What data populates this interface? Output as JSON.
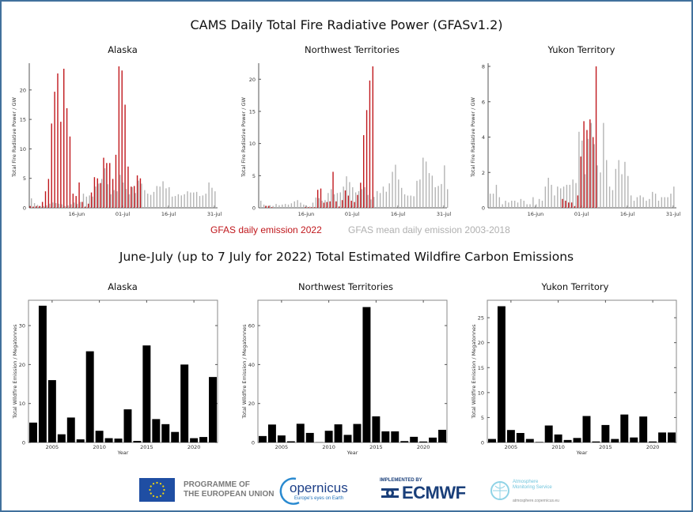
{
  "page": {
    "title": "CAMS Daily Total Fire Radiative Power (GFASv1.2)",
    "section_title": "June-July (up to 7 July for 2022) Total Estimated Wildfire Carbon Emissions",
    "legend": {
      "current_label": "GFAS daily emission 2022",
      "mean_label": "GFAS mean daily emission 2003-2018",
      "current_color": "#c0171c",
      "mean_color": "#b4b4b4"
    },
    "footer": {
      "eu_text_line1": "PROGRAMME OF",
      "eu_text_line2": "THE EUROPEAN UNION",
      "copernicus_word": "opernicus",
      "copernicus_sub": "Europe's eyes on Earth",
      "ecmwf_implemented": "IMPLEMENTED BY",
      "ecmwf_word": "ECMWF",
      "cams_line1": "Atmosphere",
      "cams_line2": "Monitoring Service",
      "cams_url": "atmosphere.copernicus.eu"
    }
  },
  "chart_data": [
    {
      "type": "bar",
      "title": "Alaska",
      "ylabel": "Total Fire Radiative Power / GW",
      "xlabel": "",
      "x_start": "01-jun",
      "days": 61,
      "xticks": [
        {
          "day": 16,
          "label": "16-jun"
        },
        {
          "day": 31,
          "label": "01-jul"
        },
        {
          "day": 46,
          "label": "16-jul"
        },
        {
          "day": 61,
          "label": "31-jul"
        }
      ],
      "yticks": [
        0,
        5,
        10,
        15,
        20
      ],
      "ylim": [
        0,
        24
      ],
      "series": [
        {
          "name": "GFAS mean daily emission 2003-2018",
          "color": "#b4b4b4",
          "values": [
            1.6,
            0.8,
            0.5,
            0.3,
            0.3,
            0.4,
            0.7,
            0.9,
            0.8,
            0.7,
            0.6,
            0.3,
            0.4,
            0.6,
            0.9,
            0.7,
            1.0,
            2.4,
            1.9,
            2.1,
            1.9,
            3.6,
            4.1,
            4.9,
            6.7,
            4.0,
            2.3,
            3.0,
            2.8,
            5.6,
            4.3,
            3.2,
            2.3,
            3.5,
            2.5,
            4.6,
            4.1,
            3.0,
            2.4,
            2.2,
            2.7,
            3.7,
            3.6,
            4.5,
            3.3,
            3.5,
            1.9,
            2.0,
            2.3,
            2.1,
            2.3,
            2.8,
            2.6,
            2.6,
            2.7,
            2.0,
            2.1,
            2.4,
            4.3,
            3.4,
            2.8
          ]
        },
        {
          "name": "GFAS daily emission 2022",
          "color": "#c0171c",
          "values": [
            0.3,
            0.2,
            0.3,
            0.3,
            1.0,
            2.8,
            4.9,
            14.3,
            19.7,
            22.8,
            14.6,
            23.6,
            16.9,
            12.1,
            2.4,
            2.0,
            4.3,
            1.0,
            0.2,
            0.7,
            2.6,
            5.2,
            5.0,
            4.2,
            8.5,
            7.6,
            7.6,
            4.9,
            9.0,
            24.0,
            23.3,
            17.5,
            7.0,
            3.6,
            3.7,
            5.5,
            5.0
          ]
        }
      ]
    },
    {
      "type": "bar",
      "title": "Northwest Territories",
      "ylabel": "Total Fire Radiative Power / GW",
      "xlabel": "",
      "x_start": "01-jun",
      "days": 61,
      "xticks": [
        {
          "day": 16,
          "label": "16-jun"
        },
        {
          "day": 31,
          "label": "01-jul"
        },
        {
          "day": 46,
          "label": "16-jul"
        },
        {
          "day": 61,
          "label": "31-jul"
        }
      ],
      "yticks": [
        0,
        5,
        10,
        15,
        20
      ],
      "ylim": [
        0,
        22
      ],
      "series": [
        {
          "name": "GFAS mean daily emission 2003-2018",
          "color": "#b4b4b4",
          "values": [
            1.1,
            0.5,
            0.3,
            0.4,
            0.3,
            0.6,
            0.4,
            0.5,
            0.6,
            0.5,
            0.7,
            1.0,
            1.2,
            0.8,
            0.5,
            0.2,
            0.2,
            0.8,
            1.6,
            1.5,
            1.1,
            1.2,
            2.3,
            2.9,
            2.1,
            2.3,
            2.4,
            3.3,
            4.9,
            4.0,
            3.2,
            2.4,
            2.6,
            2.9,
            3.2,
            2.0,
            1.3,
            1.7,
            2.6,
            2.3,
            3.3,
            2.5,
            3.8,
            5.6,
            6.7,
            4.4,
            3.1,
            2.1,
            1.9,
            1.9,
            1.8,
            4.2,
            4.4,
            7.8,
            7.2,
            5.4,
            5.0,
            3.2,
            3.4,
            3.7,
            6.6,
            2.9
          ]
        },
        {
          "name": "GFAS daily emission 2022",
          "color": "#c0171c",
          "values": [
            0.0,
            0.0,
            0.3,
            0.3,
            0.1,
            0.0,
            0.0,
            0.0,
            0.0,
            0.0,
            0.0,
            0.0,
            0.0,
            0.0,
            0.0,
            0.1,
            0.1,
            0.1,
            0.1,
            2.8,
            3.0,
            0.8,
            0.9,
            1.0,
            5.6,
            1.0,
            0.2,
            1.2,
            2.7,
            1.9,
            1.1,
            0.9,
            2.0,
            3.9,
            11.3,
            15.2,
            19.8,
            22.0
          ]
        }
      ]
    },
    {
      "type": "bar",
      "title": "Yukon Territory",
      "ylabel": "Total Fire Radiative Power / GW",
      "xlabel": "",
      "x_start": "01-jun",
      "days": 61,
      "xticks": [
        {
          "day": 16,
          "label": "16-jun"
        },
        {
          "day": 31,
          "label": "01-jul"
        },
        {
          "day": 46,
          "label": "16-jul"
        },
        {
          "day": 61,
          "label": "31-jul"
        }
      ],
      "yticks": [
        0,
        2,
        4,
        6,
        8
      ],
      "ylim": [
        0,
        8
      ],
      "series": [
        {
          "name": "GFAS mean daily emission 2003-2018",
          "color": "#b4b4b4",
          "values": [
            0.8,
            0.8,
            1.3,
            0.6,
            0.2,
            0.4,
            0.3,
            0.4,
            0.4,
            0.3,
            0.5,
            0.4,
            0.2,
            0.2,
            0.6,
            0.2,
            0.5,
            0.4,
            1.2,
            1.7,
            1.3,
            0.7,
            1.2,
            1.1,
            1.2,
            1.3,
            1.3,
            1.6,
            1.4,
            4.3,
            3.8,
            1.9,
            3.9,
            4.8,
            3.6,
            2.4,
            2.0,
            4.8,
            2.7,
            1.2,
            1.0,
            2.2,
            2.7,
            1.9,
            2.6,
            1.8,
            0.7,
            0.4,
            0.6,
            0.7,
            0.6,
            0.4,
            0.5,
            0.9,
            0.8,
            0.4,
            0.6,
            0.6,
            0.6,
            0.8,
            1.2
          ]
        },
        {
          "name": "GFAS daily emission 2022",
          "color": "#c0171c",
          "values": [
            0.0,
            0.0,
            0.0,
            0.0,
            0.0,
            0.0,
            0.0,
            0.0,
            0.0,
            0.0,
            0.0,
            0.0,
            0.0,
            0.0,
            0.0,
            0.0,
            0.0,
            0.0,
            0.0,
            0.0,
            0.0,
            0.0,
            0.0,
            0.0,
            0.5,
            0.4,
            0.3,
            0.3,
            0.1,
            0.7,
            2.9,
            4.9,
            4.4,
            5.0,
            4.0,
            8.0
          ]
        }
      ]
    },
    {
      "type": "bar",
      "title": "Alaska",
      "ylabel": "Total Wildfire Emission / Megatonnes",
      "xlabel": "Year",
      "categories": [
        2003,
        2004,
        2005,
        2006,
        2007,
        2008,
        2009,
        2010,
        2011,
        2012,
        2013,
        2014,
        2015,
        2016,
        2017,
        2018,
        2019,
        2020,
        2021,
        2022
      ],
      "xticks": [
        2005,
        2010,
        2015,
        2020
      ],
      "yticks": [
        0,
        10,
        20,
        30
      ],
      "ylim": [
        0,
        36.5
      ],
      "values": [
        5.1,
        35.1,
        16.0,
        2.1,
        6.4,
        0.8,
        23.4,
        3.0,
        1.1,
        1.0,
        8.5,
        0.4,
        24.9,
        6.0,
        4.7,
        2.7,
        20.0,
        1.1,
        1.4,
        16.8
      ]
    },
    {
      "type": "bar",
      "title": "Northwest Territories",
      "ylabel": "Total Wildfire Emission / Megatonnes",
      "xlabel": "Year",
      "categories": [
        2003,
        2004,
        2005,
        2006,
        2007,
        2008,
        2009,
        2010,
        2011,
        2012,
        2013,
        2014,
        2015,
        2016,
        2017,
        2018,
        2019,
        2020,
        2021,
        2022
      ],
      "xticks": [
        2005,
        2010,
        2015,
        2020
      ],
      "yticks": [
        0,
        20,
        40,
        60
      ],
      "ylim": [
        0,
        73
      ],
      "values": [
        3.3,
        9.2,
        3.6,
        0.6,
        9.6,
        4.9,
        0.1,
        6.0,
        9.3,
        3.9,
        9.5,
        69.5,
        13.4,
        5.7,
        5.7,
        0.7,
        2.9,
        0.5,
        2.5,
        6.5
      ]
    },
    {
      "type": "bar",
      "title": "Yukon Territory",
      "ylabel": "Total Wildfire Emission / Megatonnes",
      "xlabel": "Year",
      "categories": [
        2003,
        2004,
        2005,
        2006,
        2007,
        2008,
        2009,
        2010,
        2011,
        2012,
        2013,
        2014,
        2015,
        2016,
        2017,
        2018,
        2019,
        2020,
        2021,
        2022
      ],
      "xticks": [
        2005,
        2010,
        2015,
        2020
      ],
      "yticks": [
        0,
        5,
        10,
        15,
        20,
        25
      ],
      "ylim": [
        0,
        28.5
      ],
      "values": [
        0.7,
        27.3,
        2.5,
        1.9,
        0.7,
        0.1,
        3.4,
        1.6,
        0.5,
        0.9,
        5.3,
        0.2,
        3.5,
        0.7,
        5.6,
        1.0,
        5.2,
        0.2,
        2.0,
        2.0
      ]
    }
  ]
}
